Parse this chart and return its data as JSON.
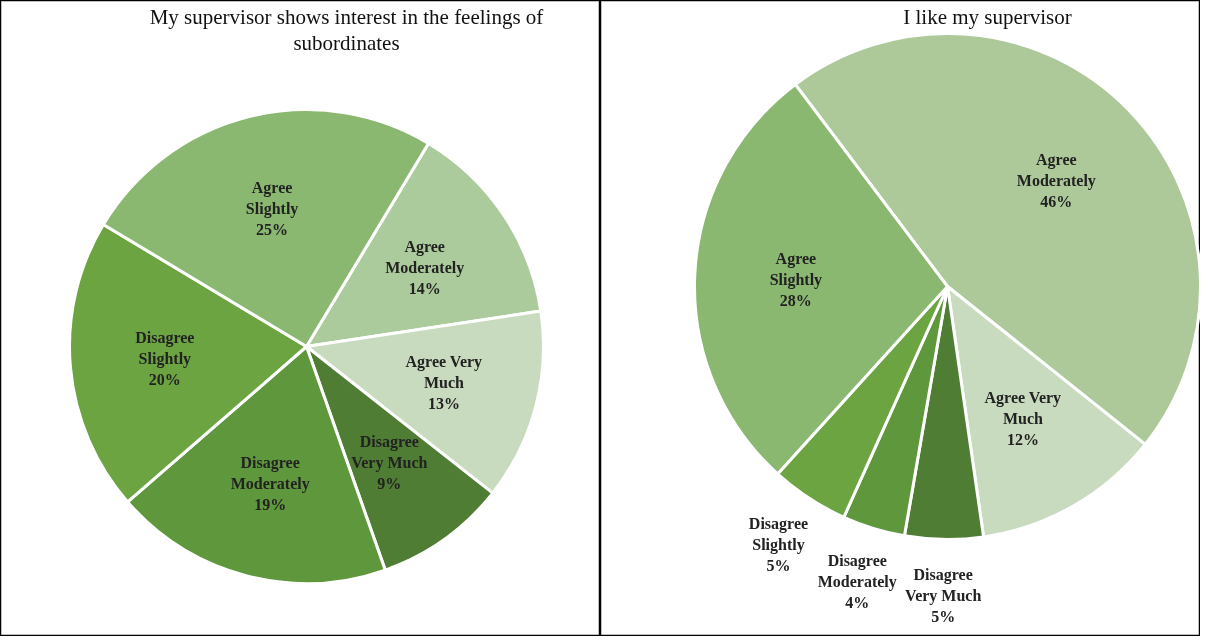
{
  "chart_data": [
    {
      "type": "pie",
      "title": "My supervisor shows interest in the feelings of subordinates",
      "categories": [
        "Agree Moderately",
        "Agree Very Much",
        "Disagree Very Much",
        "Disagree Moderately",
        "Disagree Slightly",
        "Agree Slightly"
      ],
      "values": [
        14,
        13,
        9,
        19,
        20,
        25
      ],
      "value_labels": [
        "14%",
        "13%",
        "9%",
        "19%",
        "20%",
        "25%"
      ],
      "colors": [
        "#accb9c",
        "#c9dbbf",
        "#4e7d33",
        "#5f973d",
        "#6ca442",
        "#8bb870"
      ]
    },
    {
      "type": "pie",
      "title": "I like my supervisor",
      "categories": [
        "Agree Moderately",
        "Agree Very Much",
        "Disagree Very Much",
        "Disagree Moderately",
        "Disagree Slightly",
        "Agree Slightly"
      ],
      "values": [
        46,
        12,
        5,
        4,
        5,
        28
      ],
      "value_labels": [
        "46%",
        "12%",
        "5%",
        "4%",
        "5%",
        "28%"
      ],
      "colors": [
        "#adc99a",
        "#c9dbbf",
        "#4e7d33",
        "#5f973d",
        "#6ca442",
        "#8bb870"
      ]
    }
  ]
}
